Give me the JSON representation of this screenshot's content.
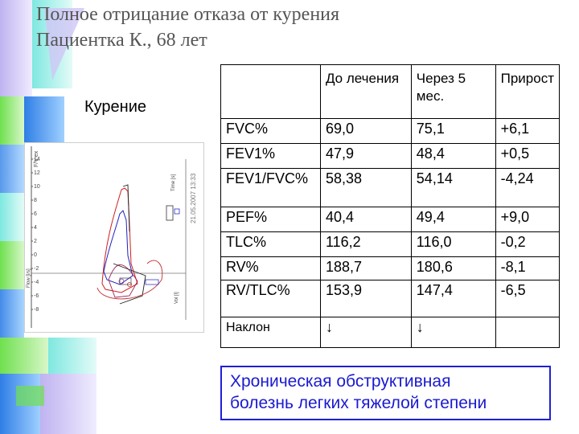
{
  "title": {
    "line1": "Полное отрицание отказа от курения",
    "line2": "Пациентка К., 68 лет"
  },
  "smoking_label": "Курение",
  "plot": {
    "stamp": "21.05.2007 13:33",
    "axis_y_left": "Flow [l/s]",
    "axis_x_bottom": "Vol [l]",
    "axis_right": "Time [s]",
    "axis_top": "F/V ex",
    "left_ticks": [
      "14",
      "12",
      "10",
      "8",
      "6",
      "4",
      "2",
      "0",
      "-2",
      "-4",
      "-6",
      "-8"
    ],
    "bottom_ticks": [
      "0",
      "1",
      "2",
      "3"
    ]
  },
  "table": {
    "header": [
      "",
      "До лечения",
      "Через 5 мес.",
      "Прирост"
    ],
    "rows": [
      {
        "name": "FVC%",
        "before": "69,0",
        "after": "75,1",
        "delta": "+6,1"
      },
      {
        "name": "FEV1%",
        "before": "47,9",
        "after": "48,4",
        "delta": "+0,5"
      },
      {
        "name": "FEV1/FVC%",
        "before": "58,38",
        "after": "54,14",
        "delta": "-4,24"
      },
      {
        "name": "PEF%",
        "before": "40,4",
        "after": "49,4",
        "delta": "+9,0"
      },
      {
        "name": "TLC%",
        "before": "116,2",
        "after": "116,0",
        "delta": "-0,2"
      },
      {
        "name": "RV%",
        "before": "188,7",
        "after": "180,6",
        "delta": "-8,1"
      },
      {
        "name": "RV/TLC%",
        "before": "153,9",
        "after": "147,4",
        "delta": "-6,5"
      },
      {
        "name": "Наклон",
        "before": "↓",
        "after": "↓",
        "delta": ""
      }
    ]
  },
  "conclusion": {
    "line1": "Хроническая обструктивная",
    "line2": "болезнь легких тяжелой степени"
  },
  "colors": {
    "title": "#555555",
    "conclusion_text": "#1a1ad0",
    "conclusion_border": "#1f1fd6",
    "deco_blue": "#2f7ee6",
    "deco_green": "#6fe04f",
    "deco_cyan": "#7ee8e0",
    "deco_lavender": "#bfb3f0"
  }
}
